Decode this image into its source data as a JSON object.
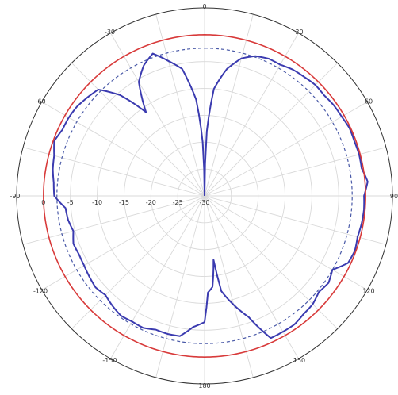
{
  "chart_data": {
    "type": "polar-line",
    "title": "",
    "angle_unit": "deg",
    "angle_zero": "top",
    "angle_direction": "clockwise",
    "angle_ticks": [
      0,
      30,
      60,
      90,
      120,
      150,
      180,
      -150,
      -120,
      -90,
      -60,
      -30
    ],
    "angle_tick_labels": [
      "0",
      "30",
      "60",
      "90",
      "120",
      "150",
      "180",
      "-150",
      "-120",
      "-90",
      "-60",
      "-30"
    ],
    "radial_range": [
      -30,
      5
    ],
    "radial_ticks": [
      -30,
      -25,
      -20,
      -15,
      -10,
      -5,
      0
    ],
    "radial_tick_labels": [
      "-30",
      "-25",
      "-20",
      "-15",
      "-10",
      "-5",
      "0"
    ],
    "grid": true,
    "colors": {
      "series_measured": "#3b3bb0",
      "series_reference": "#d83a3a",
      "series_dashed": "#4a5aa8",
      "grid": "#d9d9d9",
      "frame": "#333333"
    },
    "series": [
      {
        "style": "solid",
        "color": "#3b3bb0",
        "theta": [
          0,
          2,
          5,
          10,
          15,
          20,
          25,
          30,
          35,
          40,
          45,
          50,
          55,
          60,
          65,
          70,
          75,
          80,
          85,
          90,
          95,
          100,
          105,
          110,
          115,
          120,
          125,
          130,
          135,
          140,
          145,
          150,
          155,
          160,
          165,
          170,
          172,
          175,
          178,
          180,
          185,
          190,
          195,
          200,
          205,
          210,
          215,
          220,
          225,
          230,
          235,
          240,
          245,
          250,
          255,
          260,
          265,
          270,
          275,
          280,
          285,
          290,
          295,
          300,
          305,
          310,
          315,
          320,
          325,
          330,
          335,
          340,
          345,
          350,
          352,
          355,
          358,
          360
        ],
        "r": [
          -30,
          -18,
          -10,
          -6,
          -3.5,
          -2.3,
          -1.8,
          -1.8,
          -1.3,
          -1.1,
          -0.8,
          -0.9,
          -0.6,
          -0.5,
          -0.2,
          -0.3,
          -0.2,
          -0.3,
          0.5,
          -0.3,
          -0.2,
          -0.3,
          -0.5,
          -0.2,
          -0.5,
          -2.5,
          -1.8,
          -2.2,
          -1.5,
          -1.3,
          -0.8,
          -0.8,
          -0.8,
          -6,
          -9,
          -12,
          -18,
          -13,
          -12,
          -6.5,
          -5.5,
          -3.5,
          -3.4,
          -3.5,
          -2.9,
          -3.0,
          -2.8,
          -3.3,
          -3.9,
          -3.5,
          -3.8,
          -4.1,
          -4.2,
          -4.0,
          -4.7,
          -4.2,
          -4.0,
          -2.0,
          -1.8,
          -1.3,
          -1.0,
          -0.2,
          -0.8,
          -0.8,
          -1.0,
          -1.5,
          -2.0,
          -5.5,
          -11,
          -5.5,
          -3.2,
          -1.8,
          -4.0,
          -6.0,
          -8.5,
          -12,
          -20,
          -30
        ]
      },
      {
        "style": "solid",
        "color": "#d83a3a",
        "theta": [
          0,
          90,
          180,
          270,
          360
        ],
        "r": [
          0.0,
          0.0,
          0.0,
          0.0,
          0.0
        ]
      },
      {
        "style": "dashed",
        "color": "#4a5aa8",
        "theta": [
          0,
          90,
          180,
          270,
          360
        ],
        "r": [
          -2.5,
          -2.5,
          -2.5,
          -2.5,
          -2.5
        ]
      }
    ]
  }
}
